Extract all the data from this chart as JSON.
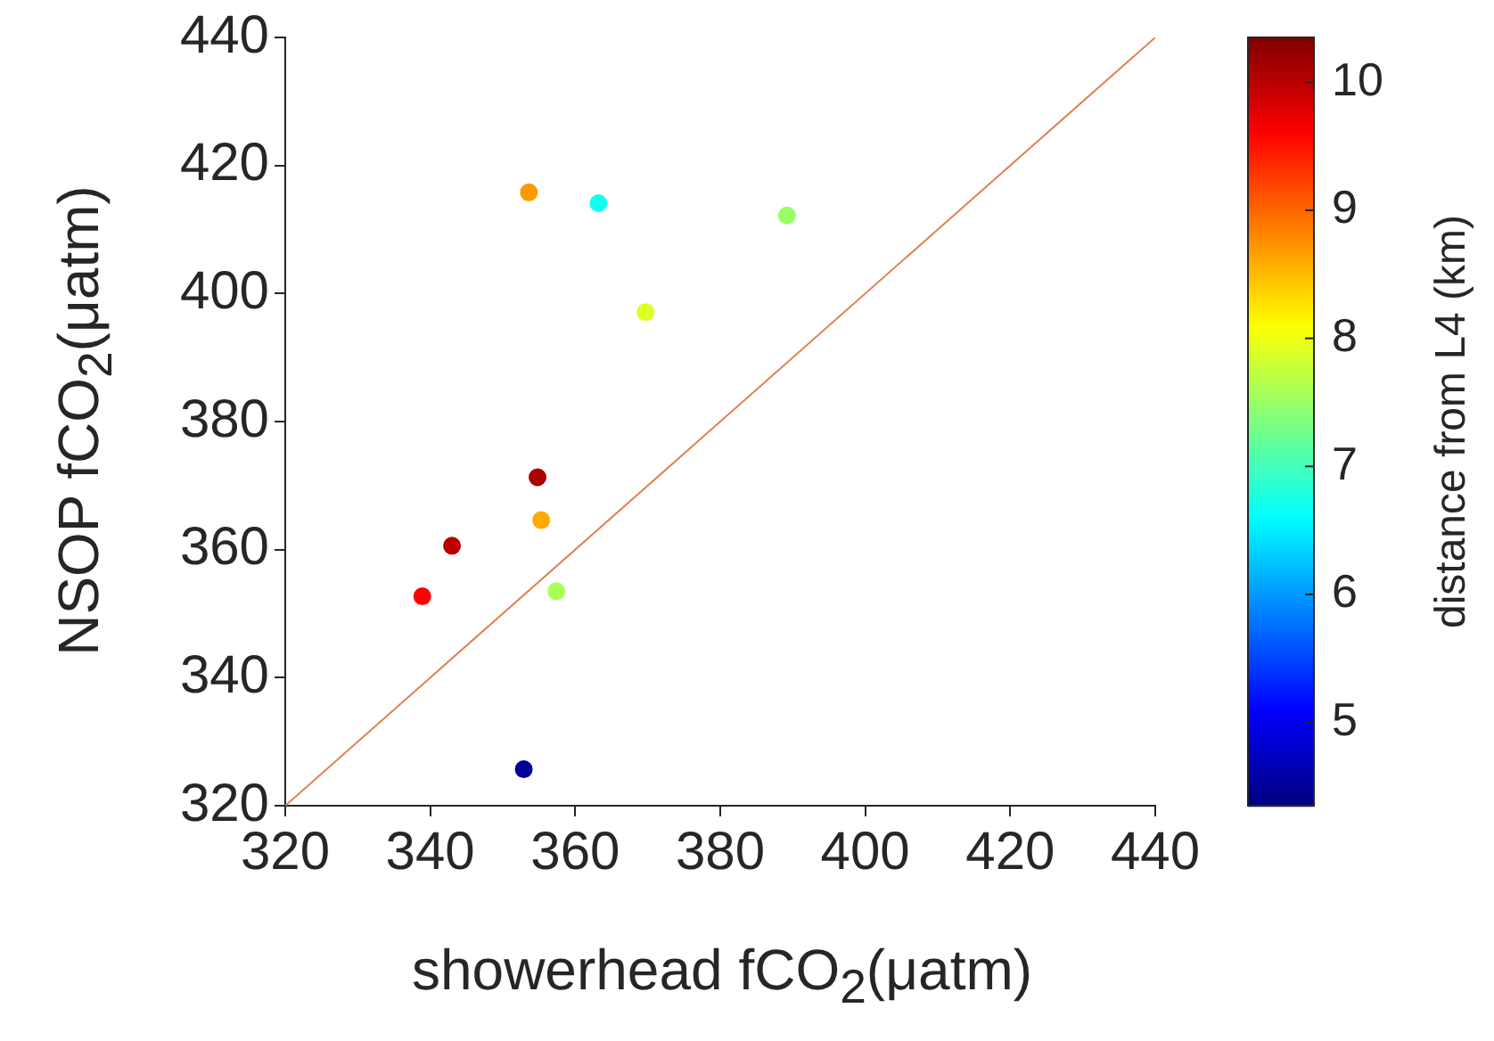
{
  "chart_data": {
    "type": "scatter",
    "xlabel": "showerhead fCO$_{2}$(μatm)",
    "ylabel": "NSOP fCO$_{2}$(μatm)",
    "clabel": "distance from L4 (km)",
    "xlim": [
      320,
      440
    ],
    "ylim": [
      320,
      440
    ],
    "xticks": [
      320,
      340,
      360,
      380,
      400,
      420,
      440
    ],
    "yticks": [
      320,
      340,
      360,
      380,
      400,
      420,
      440
    ],
    "clim": [
      4.35,
      10.35
    ],
    "cticks": [
      5,
      6,
      7,
      8,
      9,
      10
    ],
    "grid": false,
    "legend": false,
    "series": [
      {
        "type": "scatter",
        "marker": "circle",
        "x": [
          353.6,
          363.2,
          389.2,
          369.7,
          354.8,
          355.3,
          343.0,
          338.9,
          357.4,
          352.9
        ],
        "values": [
          415.8,
          414.1,
          412.2,
          397.1,
          371.3,
          364.6,
          360.6,
          352.7,
          353.5,
          325.7
        ],
        "cvalues": [
          8.7,
          6.7,
          7.5,
          7.9,
          10.1,
          8.6,
          10.0,
          9.6,
          7.6,
          4.5
        ],
        "colors": [
          "#ff9900",
          "#11ffee",
          "#99ff66",
          "#ddff22",
          "#aa0000",
          "#ffaa00",
          "#bb0000",
          "#ff0000",
          "#aaff55",
          "#000099"
        ]
      },
      {
        "type": "line",
        "marker": "none",
        "x": [
          320,
          440
        ],
        "values": [
          320,
          440
        ],
        "color": "#e08050",
        "line_style": "solid"
      }
    ]
  }
}
